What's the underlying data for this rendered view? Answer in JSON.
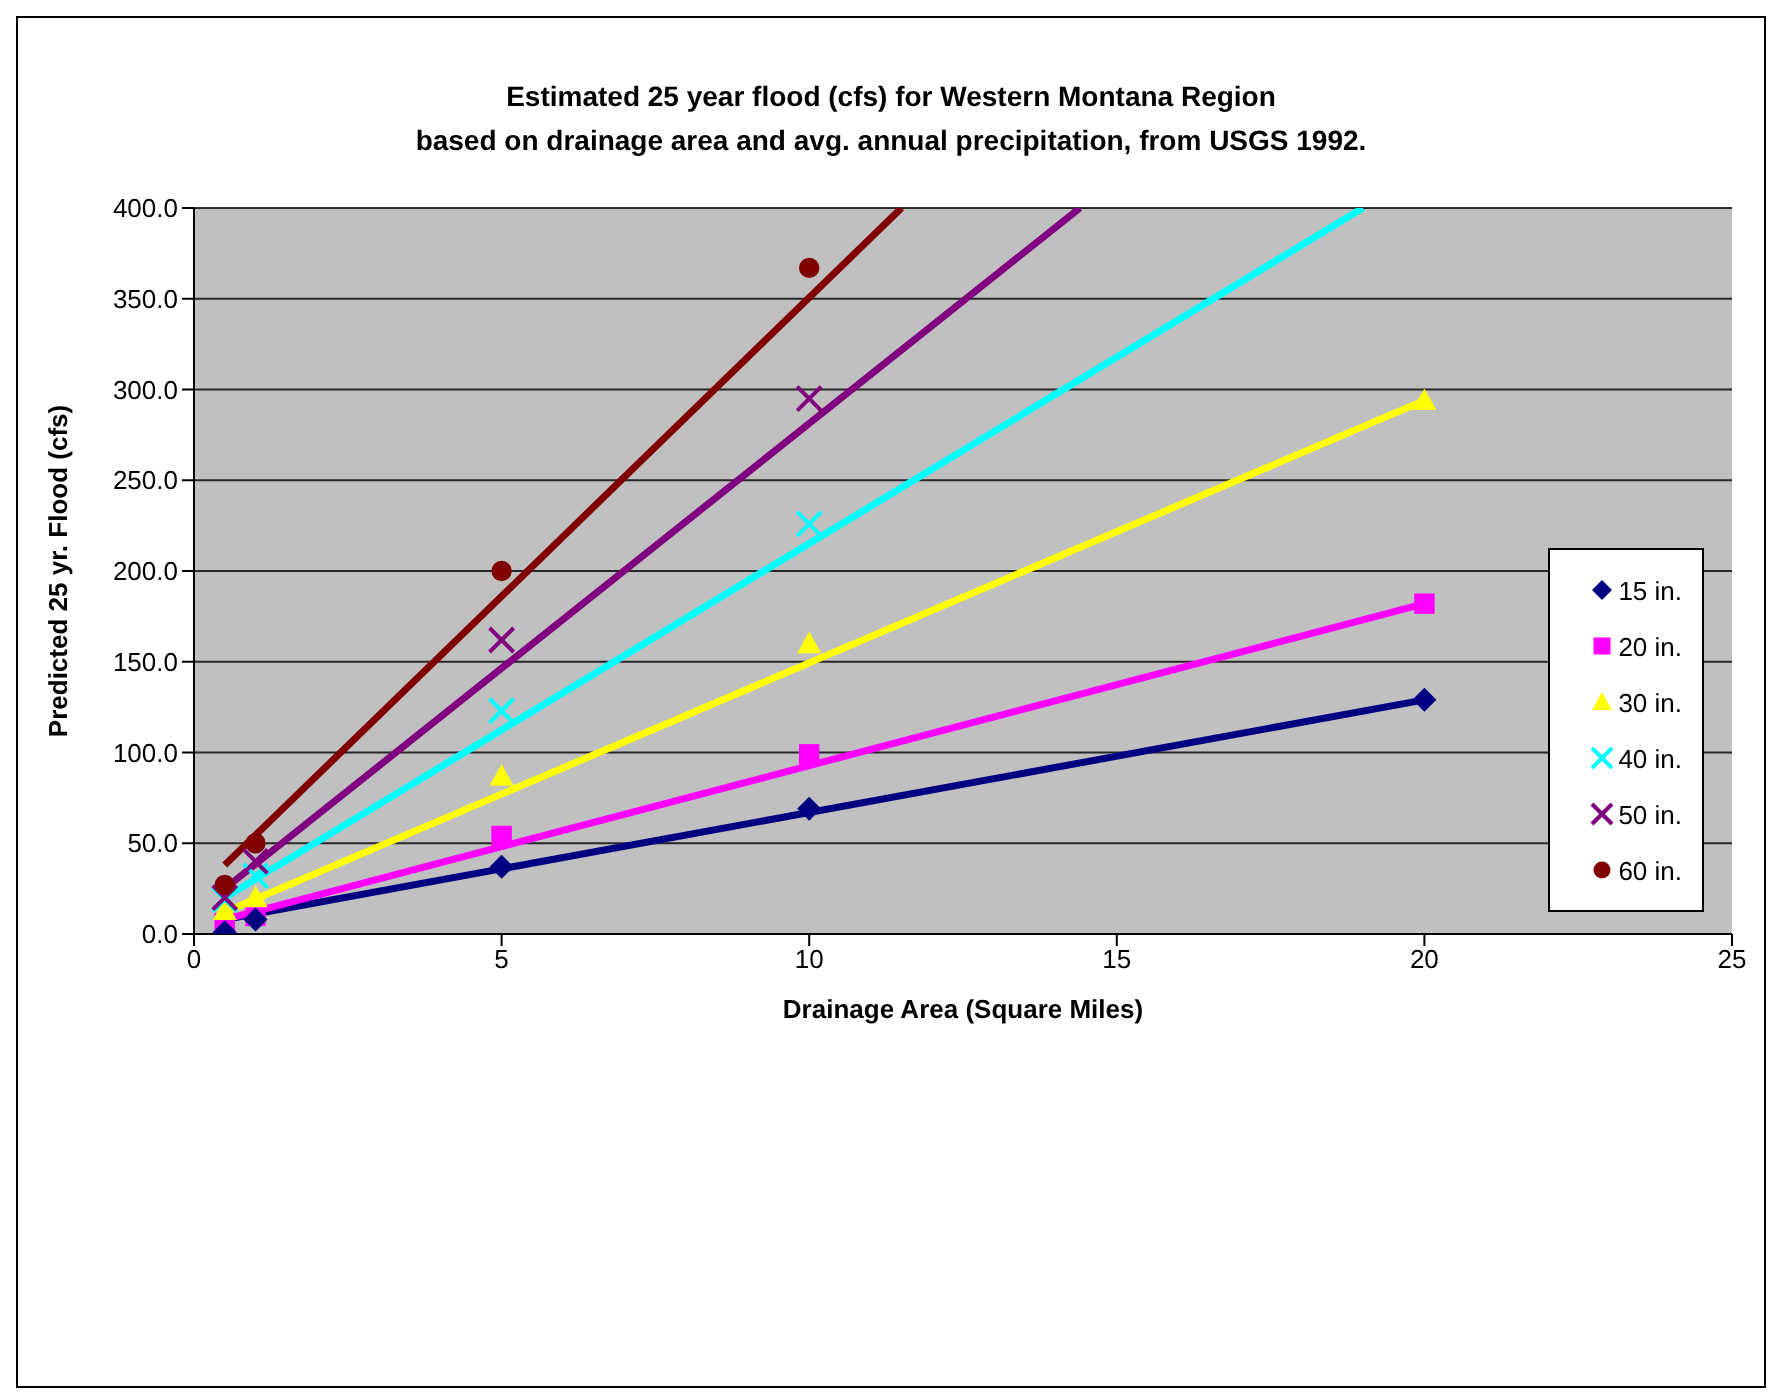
{
  "chart_data": {
    "type": "scatter",
    "title": "Estimated 25 year flood (cfs) for Western Montana Region\nbased on drainage area and avg. annual precipitation, from USGS 1992.",
    "xlabel": "Drainage Area (Square Miles)",
    "ylabel": "Predicted 25 yr. Flood (cfs)",
    "xlim": [
      0,
      25
    ],
    "xticks": [
      0,
      5,
      10,
      15,
      20,
      25
    ],
    "ylim": [
      0,
      400
    ],
    "yticks": [
      {
        "value": 0,
        "label": "0.0"
      },
      {
        "value": 50,
        "label": "50.0"
      },
      {
        "value": 100,
        "label": "100.0"
      },
      {
        "value": 150,
        "label": "150.0"
      },
      {
        "value": 200,
        "label": "200.0"
      },
      {
        "value": 250,
        "label": "250.0"
      },
      {
        "value": 300,
        "label": "300.0"
      },
      {
        "value": 350,
        "label": "350.0"
      },
      {
        "value": 400,
        "label": "400.0"
      }
    ],
    "grid": "y",
    "legend": "right",
    "series": [
      {
        "type": "line",
        "color": "#000080",
        "marker": "none",
        "x": [
          0.5,
          20
        ],
        "values": [
          8,
          129
        ]
      },
      {
        "type": "line",
        "color": "#ff00ff",
        "marker": "none",
        "x": [
          0.5,
          20
        ],
        "values": [
          8,
          182
        ]
      },
      {
        "type": "line",
        "color": "#ffff00",
        "marker": "none",
        "x": [
          0.5,
          20
        ],
        "values": [
          12,
          294
        ]
      },
      {
        "type": "line",
        "color": "#00ffff",
        "marker": "none",
        "x": [
          0.5,
          19
        ],
        "values": [
          20,
          400
        ]
      },
      {
        "type": "line",
        "color": "#800080",
        "marker": "none",
        "x": [
          0.5,
          14.4
        ],
        "values": [
          25,
          400
        ]
      },
      {
        "type": "line",
        "color": "#800000",
        "marker": "none",
        "x": [
          0.5,
          11.5
        ],
        "values": [
          38,
          400
        ]
      },
      {
        "name": "20 in.",
        "color": "#ff00ff",
        "marker": "square",
        "x": [
          0.5,
          1,
          5,
          10,
          20
        ],
        "values": [
          6,
          10,
          54,
          99,
          182
        ]
      },
      {
        "name": "15 in.",
        "color": "#000080",
        "marker": "diamond",
        "x": [
          0.5,
          1,
          5,
          10,
          20
        ],
        "values": [
          1,
          8,
          37,
          69,
          129
        ]
      },
      {
        "name": "30 in.",
        "color": "#ffff00",
        "marker": "triangle",
        "x": [
          0.5,
          1,
          5,
          10,
          20
        ],
        "values": [
          13,
          20,
          87,
          160,
          294
        ]
      },
      {
        "name": "40 in.",
        "color": "#00ffff",
        "marker": "cross",
        "x": [
          0.5,
          1,
          5,
          10
        ],
        "values": [
          19,
          32,
          123,
          226
        ]
      },
      {
        "name": "50 in.",
        "color": "#800080",
        "marker": "cross",
        "x": [
          0.5,
          1,
          5,
          10
        ],
        "values": [
          20,
          40,
          162,
          295
        ]
      },
      {
        "name": "60 in.",
        "color": "#800000",
        "marker": "circle",
        "x": [
          0.5,
          1,
          5,
          10
        ],
        "values": [
          27,
          50,
          200,
          367
        ]
      }
    ]
  }
}
